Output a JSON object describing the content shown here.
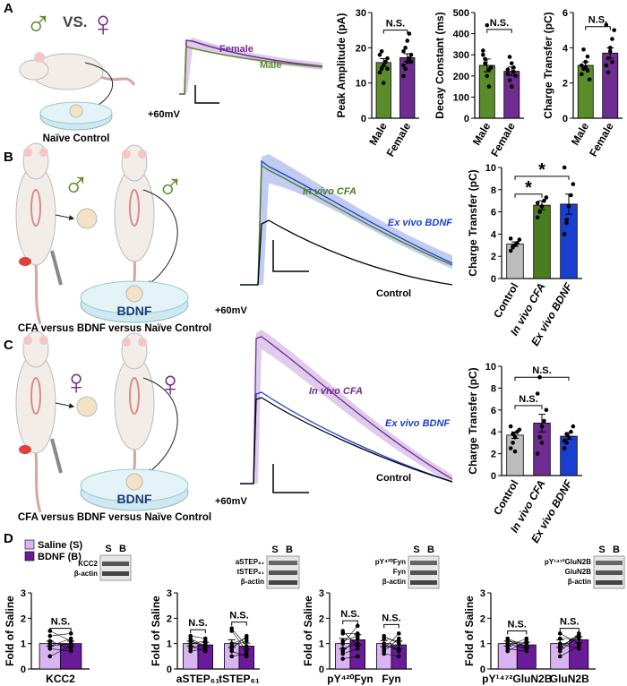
{
  "panel_labels": [
    "A",
    "B",
    "C",
    "D"
  ],
  "illustrations": {
    "a_symbols": [
      "♂",
      "VS.",
      "♀"
    ],
    "a_caption": "Naïve Control",
    "b_symbol": "♂",
    "b_dish": "BDNF",
    "b_caption": "CFA versus BDNF versus Naïve Control",
    "c_symbol": "♀",
    "c_dish": "BDNF",
    "c_caption": "CFA versus BDNF versus Naïve Control"
  },
  "traces": [
    {
      "labels": [
        "Female",
        "Male"
      ],
      "voltage": "+60mV"
    },
    {
      "labels": [
        "In vivo CFA",
        "Ex vivo BDNF",
        "Control"
      ],
      "voltage": "+60mV"
    },
    {
      "labels": [
        "In vivo CFA",
        "Ex vivo BDNF",
        "Control"
      ],
      "voltage": "+60mV"
    }
  ],
  "blots": [
    {
      "lanes": [
        "S",
        "B"
      ],
      "bands": [
        "KCC2",
        "β-actin"
      ]
    },
    {
      "lanes": [
        "S",
        "B"
      ],
      "bands": [
        "aSTEP₆₁",
        "tSTEP₆₁",
        "β-actin"
      ]
    },
    {
      "lanes": [
        "S",
        "B"
      ],
      "bands": [
        "pY⁴²⁰Fyn",
        "Fyn",
        "β-actin"
      ]
    },
    {
      "lanes": [
        "S",
        "B"
      ],
      "bands": [
        "pY¹⁴⁷²GluN2B",
        "GluN2B",
        "β-actin"
      ]
    }
  ],
  "chart_data": [
    {
      "type": "bar",
      "ylabel": "Peak Amplitude (pA)",
      "categories": [
        "Male",
        "Female"
      ],
      "series": [
        {
          "colors": [
            "#5b8c2a",
            "#6f2c91"
          ],
          "values": [
            15.8,
            17.2
          ],
          "errors": [
            1.1,
            1.1
          ],
          "points": [
            [
              13,
              14,
              15,
              16,
              17,
              18,
              19,
              10,
              16,
              14
            ],
            [
              12,
              14,
              16,
              17,
              18,
              19,
              20,
              22,
              24,
              16,
              15
            ]
          ]
        }
      ],
      "ylim": [
        0,
        30
      ],
      "yticks": [
        0,
        10,
        20,
        30
      ],
      "annotations": [
        "N.S."
      ]
    },
    {
      "type": "bar",
      "ylabel": "Decay Constant (ms)",
      "categories": [
        "Male",
        "Female"
      ],
      "series": [
        {
          "colors": [
            "#5b8c2a",
            "#6f2c91"
          ],
          "values": [
            250,
            222
          ],
          "errors": [
            30,
            20
          ],
          "points": [
            [
              300,
              280,
              200,
              150,
              240,
              320,
              260,
              440,
              230
            ],
            [
              210,
              180,
              260,
              240,
              200,
              230,
              290,
              150,
              220
            ]
          ]
        }
      ],
      "ylim": [
        0,
        500
      ],
      "yticks": [
        0,
        100,
        200,
        300,
        400,
        500
      ],
      "annotations": [
        "N.S."
      ]
    },
    {
      "type": "bar",
      "ylabel": "Charge Transfer (pC)",
      "categories": [
        "Male",
        "Female"
      ],
      "series": [
        {
          "colors": [
            "#5b8c2a",
            "#6f2c91"
          ],
          "values": [
            3.0,
            3.7
          ],
          "errors": [
            0.2,
            0.3
          ],
          "points": [
            [
              2.5,
              2.8,
              3.2,
              3.5,
              2.2,
              3.0,
              3.9,
              2.9,
              2.7
            ],
            [
              3.0,
              3.4,
              4.0,
              4.5,
              5.0,
              5.3,
              2.6,
              3.8,
              3.2
            ]
          ]
        }
      ],
      "ylim": [
        0,
        6
      ],
      "yticks": [
        0,
        2,
        4,
        6
      ],
      "annotations": [
        "N.S."
      ]
    },
    {
      "type": "bar",
      "ylabel": "Charge Transfer (pC)",
      "categories": [
        "Control",
        "In vivo CFA",
        "Ex vivo BDNF"
      ],
      "series": [
        {
          "colors": [
            "#bdbdbd",
            "#4a7d1e",
            "#1a3fd0"
          ],
          "values": [
            3.1,
            6.6,
            6.7
          ],
          "errors": [
            0.2,
            0.4,
            0.9
          ],
          "points": [
            [
              2.5,
              2.8,
              3.0,
              3.2,
              3.5,
              3.6,
              2.9
            ],
            [
              5.5,
              6.0,
              6.5,
              7.0,
              7.3,
              6.8
            ],
            [
              4.0,
              5.0,
              6.5,
              7.5,
              8.5,
              10.0,
              5.3
            ]
          ]
        }
      ],
      "ylim": [
        0,
        10
      ],
      "yticks": [
        0,
        2,
        4,
        6,
        8,
        10
      ],
      "annotations": [
        "*",
        "*"
      ]
    },
    {
      "type": "bar",
      "ylabel": "Charge Transfer (pC)",
      "categories": [
        "Control",
        "In vivo CFA",
        "Ex vivo BDNF"
      ],
      "series": [
        {
          "colors": [
            "#bdbdbd",
            "#6f2c91",
            "#1a3fd0"
          ],
          "values": [
            3.7,
            4.8,
            3.6
          ],
          "errors": [
            0.3,
            0.8,
            0.3
          ],
          "points": [
            [
              2.5,
              3.0,
              3.5,
              4.0,
              4.2,
              4.5,
              3.8,
              2.2
            ],
            [
              2.0,
              3.5,
              4.5,
              5.0,
              6.0,
              7.5,
              9.0,
              3.0
            ],
            [
              2.5,
              3.0,
              3.5,
              4.0,
              4.5,
              3.2,
              3.8
            ]
          ]
        }
      ],
      "ylim": [
        0,
        10
      ],
      "yticks": [
        0,
        2,
        4,
        6,
        8,
        10
      ],
      "annotations": [
        "N.S.",
        "N.S."
      ]
    },
    {
      "type": "bar",
      "ylabel": "Fold of Saline",
      "categories": [
        "KCC2"
      ],
      "series": [
        {
          "name": "Saline (S)",
          "color": "#d9b3f2",
          "values": [
            1.0
          ],
          "errors": [
            0.1
          ],
          "points": [
            [
              0.5,
              0.8,
              0.9,
              1.0,
              1.1,
              1.3,
              1.5,
              0.9
            ]
          ]
        },
        {
          "name": "BDNF (B)",
          "color": "#6a1b9a",
          "values": [
            1.0
          ],
          "errors": [
            0.1
          ],
          "points": [
            [
              0.9,
              0.7,
              1.2,
              1.0,
              0.8,
              1.4,
              1.1,
              1.0
            ]
          ]
        }
      ],
      "ylim": [
        0,
        3
      ],
      "yticks": [
        0,
        1,
        2,
        3
      ],
      "annotations": [
        "N.S."
      ]
    },
    {
      "type": "bar",
      "ylabel": "Fold of Saline",
      "categories": [
        "aSTEP₆₁",
        "tSTEP₆₁"
      ],
      "series": [
        {
          "color": "#d9b3f2",
          "values": [
            1.0,
            1.0
          ],
          "errors": [
            0.1,
            0.15
          ],
          "points": [
            [
              0.7,
              1.0,
              1.2,
              1.3,
              0.9,
              0.8,
              1.1
            ],
            [
              0.5,
              1.0,
              1.5,
              1.6,
              0.7,
              0.8,
              0.9
            ]
          ]
        },
        {
          "color": "#6a1b9a",
          "values": [
            0.95,
            0.9
          ],
          "errors": [
            0.1,
            0.12
          ],
          "points": [
            [
              0.8,
              1.1,
              0.9,
              1.2,
              0.7,
              1.0,
              0.9
            ],
            [
              0.6,
              1.2,
              0.7,
              0.9,
              0.5,
              1.3,
              1.1
            ]
          ]
        }
      ],
      "ylim": [
        0,
        3
      ],
      "yticks": [
        0,
        1,
        2,
        3
      ],
      "annotations": [
        "N.S.",
        "N.S."
      ]
    },
    {
      "type": "bar",
      "ylabel": "Fold of Saline",
      "categories": [
        "pY⁴²⁰Fyn",
        "Fyn"
      ],
      "series": [
        {
          "color": "#d9b3f2",
          "values": [
            1.0,
            1.0
          ],
          "errors": [
            0.2,
            0.12
          ],
          "points": [
            [
              0.4,
              0.7,
              1.0,
              1.4,
              1.5,
              0.8,
              1.1,
              0.6
            ],
            [
              0.6,
              0.8,
              1.0,
              1.3,
              1.2,
              0.9,
              0.7
            ]
          ]
        },
        {
          "color": "#6a1b9a",
          "values": [
            1.15,
            0.95
          ],
          "errors": [
            0.2,
            0.15
          ],
          "points": [
            [
              0.5,
              1.2,
              1.7,
              1.4,
              0.9,
              1.0,
              1.3,
              0.8
            ],
            [
              0.5,
              1.4,
              0.7,
              1.0,
              1.1,
              0.8,
              1.2
            ]
          ]
        }
      ],
      "ylim": [
        0,
        3
      ],
      "yticks": [
        0,
        1,
        2,
        3
      ],
      "annotations": [
        "N.S.",
        "N.S."
      ]
    },
    {
      "type": "bar",
      "ylabel": "Fold of Saline",
      "categories": [
        "pY¹⁴⁷²GluN2B",
        "GluN2B"
      ],
      "series": [
        {
          "color": "#d9b3f2",
          "values": [
            1.0,
            1.0
          ],
          "errors": [
            0.1,
            0.15
          ],
          "points": [
            [
              0.8,
              1.1,
              1.2,
              0.9,
              1.0,
              0.7,
              1.1
            ],
            [
              0.5,
              0.8,
              1.2,
              1.4,
              0.9,
              1.0,
              0.7
            ]
          ]
        },
        {
          "color": "#6a1b9a",
          "values": [
            0.95,
            1.15
          ],
          "errors": [
            0.1,
            0.12
          ],
          "points": [
            [
              0.7,
              1.0,
              0.9,
              1.2,
              0.8,
              1.1,
              0.9
            ],
            [
              0.9,
              1.4,
              1.2,
              1.0,
              1.3,
              0.8,
              1.3
            ]
          ]
        }
      ],
      "ylim": [
        0,
        3
      ],
      "yticks": [
        0,
        1,
        2,
        3
      ],
      "annotations": [
        "N.S.",
        "N.S."
      ]
    }
  ]
}
